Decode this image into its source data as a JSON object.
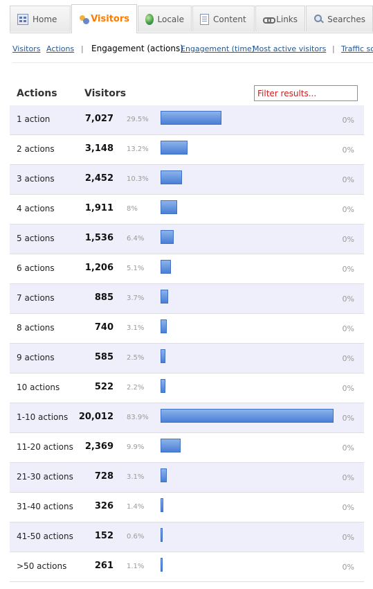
{
  "tabs": [
    {
      "label": "Home",
      "icon": "home-icon",
      "active": false
    },
    {
      "label": "Visitors",
      "icon": "visitors-icon",
      "active": true
    },
    {
      "label": "Locale",
      "icon": "globe-icon",
      "active": false
    },
    {
      "label": "Content",
      "icon": "page-icon",
      "active": false
    },
    {
      "label": "Links",
      "icon": "link-icon",
      "active": false
    },
    {
      "label": "Searches",
      "icon": "magnifier-icon",
      "active": false
    }
  ],
  "subnav": {
    "visitors": "Visitors",
    "actions": "Actions",
    "separator": "|",
    "current": "Engagement (actions)",
    "engagement_time": "Engagement (time)",
    "most_active": "Most active visitors",
    "separator2": "|",
    "traffic": "Traffic so"
  },
  "table": {
    "col_actions": "Actions",
    "col_visitors": "Visitors",
    "filter_placeholder": "Filter results...",
    "rows": [
      {
        "label": "1 action",
        "visitors": "7,027",
        "percent": "29.5%",
        "fraction": 0.295,
        "change": "0%"
      },
      {
        "label": "2 actions",
        "visitors": "3,148",
        "percent": "13.2%",
        "fraction": 0.132,
        "change": "0%"
      },
      {
        "label": "3 actions",
        "visitors": "2,452",
        "percent": "10.3%",
        "fraction": 0.103,
        "change": "0%"
      },
      {
        "label": "4 actions",
        "visitors": "1,911",
        "percent": "8%",
        "fraction": 0.08,
        "change": "0%"
      },
      {
        "label": "5 actions",
        "visitors": "1,536",
        "percent": "6.4%",
        "fraction": 0.064,
        "change": "0%"
      },
      {
        "label": "6 actions",
        "visitors": "1,206",
        "percent": "5.1%",
        "fraction": 0.051,
        "change": "0%"
      },
      {
        "label": "7 actions",
        "visitors": "885",
        "percent": "3.7%",
        "fraction": 0.037,
        "change": "0%"
      },
      {
        "label": "8 actions",
        "visitors": "740",
        "percent": "3.1%",
        "fraction": 0.031,
        "change": "0%"
      },
      {
        "label": "9 actions",
        "visitors": "585",
        "percent": "2.5%",
        "fraction": 0.025,
        "change": "0%"
      },
      {
        "label": "10 actions",
        "visitors": "522",
        "percent": "2.2%",
        "fraction": 0.022,
        "change": "0%"
      },
      {
        "label": "1-10 actions",
        "visitors": "20,012",
        "percent": "83.9%",
        "fraction": 0.839,
        "change": "0%"
      },
      {
        "label": "11-20 actions",
        "visitors": "2,369",
        "percent": "9.9%",
        "fraction": 0.099,
        "change": "0%"
      },
      {
        "label": "21-30 actions",
        "visitors": "728",
        "percent": "3.1%",
        "fraction": 0.031,
        "change": "0%"
      },
      {
        "label": "31-40 actions",
        "visitors": "326",
        "percent": "1.4%",
        "fraction": 0.014,
        "change": "0%"
      },
      {
        "label": "41-50 actions",
        "visitors": "152",
        "percent": "0.6%",
        "fraction": 0.006,
        "change": "0%"
      },
      {
        "label": ">50 actions",
        "visitors": "261",
        "percent": "1.1%",
        "fraction": 0.011,
        "change": "0%"
      }
    ]
  },
  "colors": {
    "accent": "#ff7b00",
    "link": "#255792",
    "bar": "#4a7fd6",
    "row_alt": "#efeffb",
    "filter_text": "#d01a1a"
  }
}
